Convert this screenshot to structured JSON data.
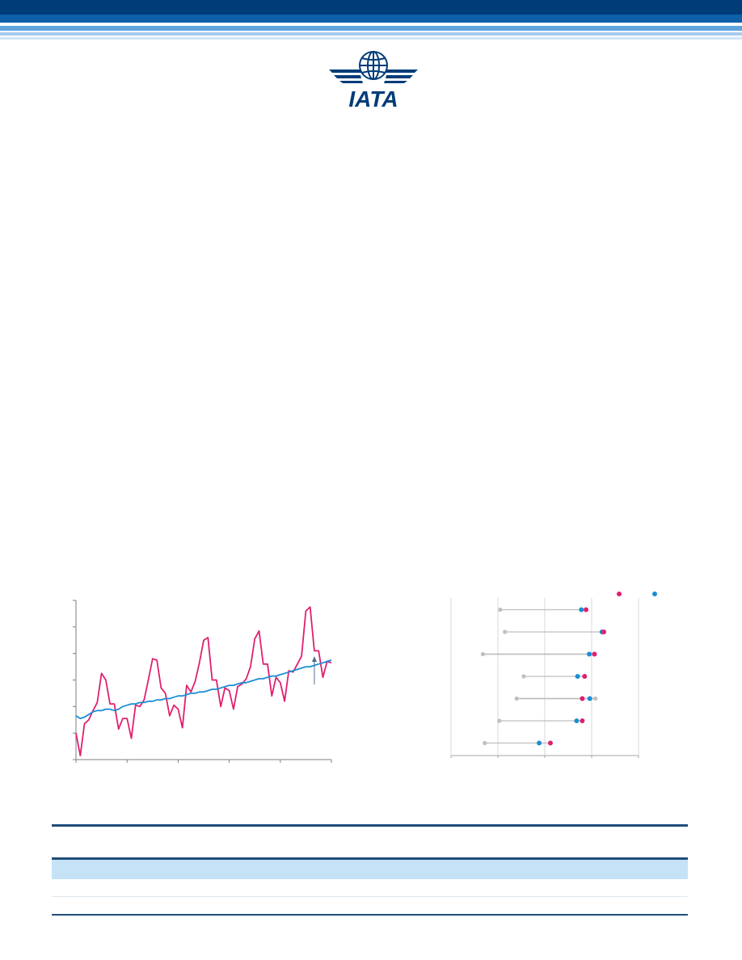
{
  "logo": {
    "text": "IATA"
  },
  "colors": {
    "brand_dark": "#002f6c",
    "brand_light": "#7fb6e6",
    "series_pink": "#e0206f",
    "series_blue": "#1a8ed4",
    "series_grey": "#bfbfbf",
    "table_rule": "#1f4e79",
    "table_header": "#c6e2f7"
  },
  "chart_data": [
    {
      "type": "line",
      "series": [
        {
          "values": [
            20,
            3,
            27,
            30,
            37,
            43,
            65,
            60,
            42,
            42,
            23,
            31,
            31,
            16,
            41,
            40,
            45,
            60,
            76,
            75,
            54,
            50,
            33,
            41,
            38,
            24,
            56,
            51,
            59,
            73,
            90,
            92,
            60,
            60,
            40,
            54,
            52,
            38,
            55,
            57,
            61,
            70,
            91,
            97,
            72,
            72,
            48,
            62,
            58,
            44,
            67,
            66,
            72,
            78,
            112,
            115,
            82,
            82,
            62,
            74,
            73
          ]
        },
        {
          "values": [
            33,
            31,
            32,
            34,
            36,
            37,
            37,
            38,
            38,
            37,
            38,
            40,
            41,
            42,
            42,
            43,
            43,
            44,
            44,
            45,
            45,
            46,
            46,
            47,
            48,
            48,
            49,
            50,
            50,
            51,
            51,
            52,
            53,
            53,
            54,
            55,
            56,
            56,
            57,
            58,
            58,
            59,
            60,
            61,
            61,
            62,
            63,
            63,
            64,
            65,
            66,
            67,
            68,
            69,
            70,
            70,
            71,
            72,
            73,
            74,
            75
          ]
        }
      ],
      "annotations": [
        {
          "type": "arrow",
          "x_index": 56
        }
      ]
    },
    {
      "type": "dumbbell",
      "legend_placement": "top-right",
      "legend_markers": [
        "pink-dot",
        "blue-dot"
      ],
      "xlim": [
        0,
        4
      ],
      "rows": [
        {
          "grey": 1.05,
          "blue": 2.78,
          "pink": 2.88
        },
        {
          "grey": 1.15,
          "blue": 3.22,
          "pink": 3.26
        },
        {
          "grey": 0.68,
          "blue": 2.95,
          "pink": 3.06
        },
        {
          "grey": 1.55,
          "blue": 2.7,
          "pink": 2.85
        },
        {
          "grey": 1.4,
          "blue": 2.96,
          "pink": 2.8,
          "grey_far": 3.08
        },
        {
          "grey": 1.03,
          "blue": 2.68,
          "pink": 2.8
        },
        {
          "grey": 0.72,
          "blue": 1.88,
          "pink": 2.12
        }
      ]
    }
  ]
}
